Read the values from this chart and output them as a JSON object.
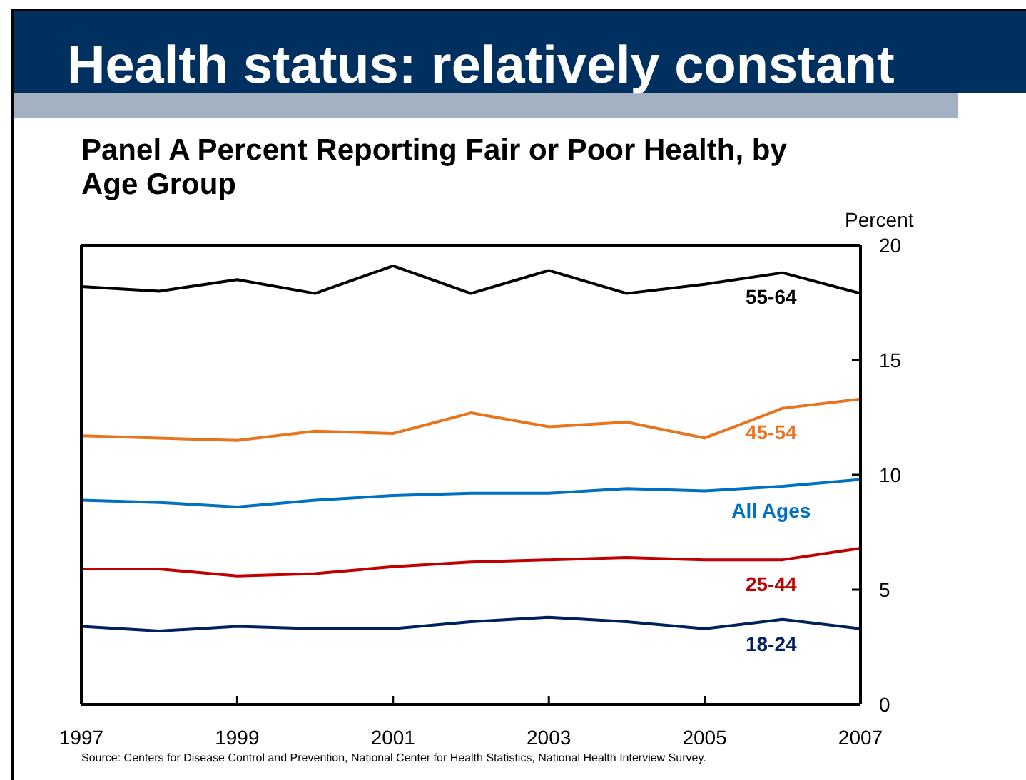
{
  "chart_data": {
    "type": "line",
    "title": "Health status: relatively constant",
    "subtitle": "Panel A Percent Reporting Fair or Poor Health, by Age Group",
    "ylabel": "Percent",
    "x": [
      1997,
      1998,
      1999,
      2000,
      2001,
      2002,
      2003,
      2004,
      2005,
      2006,
      2007
    ],
    "series": [
      {
        "name": "55-64",
        "color": "#000000",
        "values": [
          18.2,
          18.0,
          18.5,
          17.9,
          19.1,
          17.9,
          18.9,
          17.9,
          18.3,
          18.8,
          17.9
        ]
      },
      {
        "name": "45-54",
        "color": "#e8741e",
        "values": [
          11.7,
          11.6,
          11.5,
          11.9,
          11.8,
          12.7,
          12.1,
          12.3,
          11.6,
          12.9,
          13.3
        ]
      },
      {
        "name": "All Ages",
        "color": "#0070c0",
        "values": [
          8.9,
          8.8,
          8.6,
          8.9,
          9.1,
          9.2,
          9.2,
          9.4,
          9.3,
          9.5,
          9.8
        ]
      },
      {
        "name": "25-44",
        "color": "#c00000",
        "values": [
          5.9,
          5.9,
          5.6,
          5.7,
          6.0,
          6.2,
          6.3,
          6.4,
          6.3,
          6.3,
          6.8
        ]
      },
      {
        "name": "18-24",
        "color": "#002060",
        "values": [
          3.4,
          3.2,
          3.4,
          3.3,
          3.3,
          3.6,
          3.8,
          3.6,
          3.3,
          3.7,
          3.3
        ]
      }
    ],
    "xlim": [
      1997,
      2007
    ],
    "xticks": [
      1997,
      1999,
      2001,
      2003,
      2005,
      2007
    ],
    "ylim": [
      0,
      20
    ],
    "yticks": [
      0,
      5,
      10,
      15,
      20
    ],
    "line_style": "solid",
    "annotations": [
      "Source: Centers for Disease Control and Prevention, National Center for Health Statistics, National Health Interview Survey."
    ]
  }
}
